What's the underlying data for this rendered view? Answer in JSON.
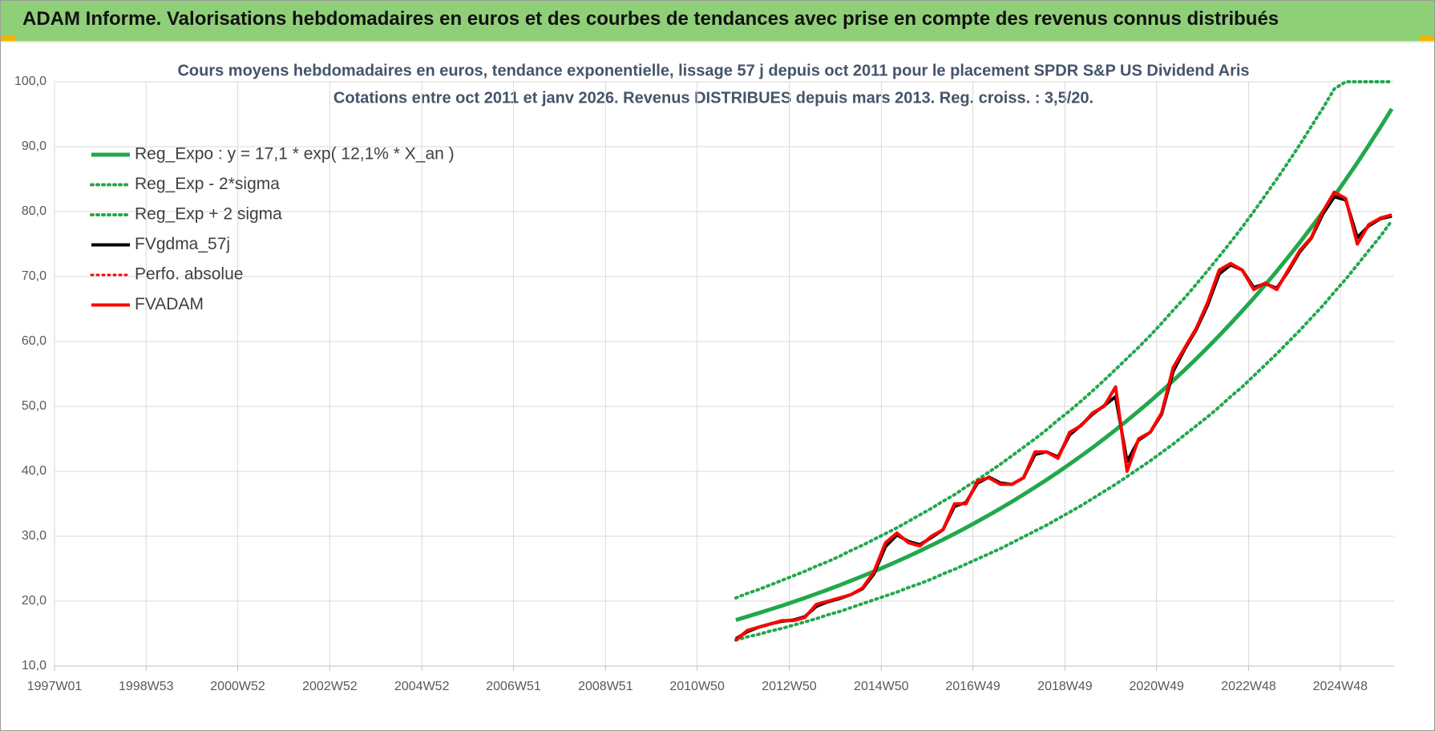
{
  "header": {
    "title": "ADAM Informe. Valorisations hebdomadaires en euros et des courbes de tendances avec prise en compte des revenus connus distribués"
  },
  "chart_data": {
    "type": "line",
    "title": "Cours moyens hebdomadaires en euros, tendance exponentielle, lissage 57 j depuis oct 2011 pour le placement SPDR S&P US Dividend Aris",
    "subtitle": "Cotations entre oct 2011 et janv 2026. Revenus DISTRIBUES depuis mars 2013. Reg. croiss. : 3,5/20.",
    "grid": true,
    "legend": "top-left",
    "xlim": [
      1997.0,
      2026.1
    ],
    "xticks": [
      {
        "value": 1997.0,
        "label": "1997W01"
      },
      {
        "value": 1998.99,
        "label": "1998W53"
      },
      {
        "value": 2000.98,
        "label": "2000W52"
      },
      {
        "value": 2002.98,
        "label": "2002W52"
      },
      {
        "value": 2004.98,
        "label": "2004W52"
      },
      {
        "value": 2006.97,
        "label": "2006W51"
      },
      {
        "value": 2008.97,
        "label": "2008W51"
      },
      {
        "value": 2010.96,
        "label": "2010W50"
      },
      {
        "value": 2012.96,
        "label": "2012W50"
      },
      {
        "value": 2014.96,
        "label": "2014W50"
      },
      {
        "value": 2016.95,
        "label": "2016W49"
      },
      {
        "value": 2018.95,
        "label": "2018W49"
      },
      {
        "value": 2020.94,
        "label": "2020W49"
      },
      {
        "value": 2022.94,
        "label": "2022W48"
      },
      {
        "value": 2024.93,
        "label": "2024W48"
      }
    ],
    "ylim": [
      10,
      100
    ],
    "yticks": [
      {
        "value": 10,
        "label": "10,0"
      },
      {
        "value": 20,
        "label": "20,0"
      },
      {
        "value": 30,
        "label": "30,0"
      },
      {
        "value": 40,
        "label": "40,0"
      },
      {
        "value": 50,
        "label": "50,0"
      },
      {
        "value": 60,
        "label": "60,0"
      },
      {
        "value": 70,
        "label": "70,0"
      },
      {
        "value": 80,
        "label": "80,0"
      },
      {
        "value": 90,
        "label": "90,0"
      },
      {
        "value": 100,
        "label": "100,0"
      }
    ],
    "x": [
      2011.8,
      2012.05,
      2012.3,
      2012.55,
      2012.8,
      2013.05,
      2013.3,
      2013.55,
      2013.8,
      2014.05,
      2014.3,
      2014.55,
      2014.8,
      2015.05,
      2015.3,
      2015.55,
      2015.8,
      2016.05,
      2016.3,
      2016.55,
      2016.8,
      2017.05,
      2017.3,
      2017.55,
      2017.8,
      2018.05,
      2018.3,
      2018.55,
      2018.8,
      2019.05,
      2019.3,
      2019.55,
      2019.8,
      2020.05,
      2020.3,
      2020.55,
      2020.8,
      2021.05,
      2021.3,
      2021.55,
      2021.8,
      2022.05,
      2022.3,
      2022.55,
      2022.8,
      2023.05,
      2023.3,
      2023.55,
      2023.8,
      2024.05,
      2024.3,
      2024.55,
      2024.8,
      2025.05,
      2025.3,
      2025.55,
      2025.8,
      2026.05
    ],
    "series": [
      {
        "name": "Reg_Expo : y = 17,1 * exp( 12,1% *  X_an )",
        "color": "#22a84c",
        "width": 5,
        "dash": false,
        "values": [
          17.1,
          17.63,
          18.17,
          18.73,
          19.3,
          19.89,
          20.5,
          21.13,
          21.78,
          22.45,
          23.14,
          23.85,
          24.58,
          25.33,
          26.11,
          26.91,
          27.74,
          28.59,
          29.47,
          30.37,
          31.31,
          32.27,
          33.26,
          34.28,
          35.33,
          36.42,
          37.54,
          38.69,
          39.88,
          41.1,
          42.36,
          43.66,
          45.0,
          46.38,
          47.81,
          49.28,
          50.79,
          52.35,
          53.96,
          55.61,
          57.32,
          59.08,
          60.89,
          62.76,
          64.69,
          66.67,
          68.72,
          70.83,
          73.0,
          75.24,
          77.55,
          79.93,
          82.39,
          84.92,
          87.52,
          90.21,
          92.98,
          95.83
        ]
      },
      {
        "name": "Reg_Exp - 2*sigma",
        "color": "#22a84c",
        "width": 4,
        "dash": true,
        "values": [
          14.0,
          14.5,
          14.9,
          15.4,
          15.8,
          16.3,
          16.8,
          17.3,
          17.9,
          18.4,
          19.0,
          19.6,
          20.2,
          20.8,
          21.4,
          22.1,
          22.7,
          23.4,
          24.2,
          24.9,
          25.7,
          26.5,
          27.3,
          28.1,
          29.0,
          29.9,
          30.8,
          31.7,
          32.7,
          33.7,
          34.7,
          35.8,
          36.9,
          38.0,
          39.2,
          40.4,
          41.6,
          42.9,
          44.2,
          45.6,
          47.0,
          48.4,
          49.9,
          51.5,
          53.0,
          54.7,
          56.4,
          58.1,
          59.9,
          61.7,
          63.6,
          65.5,
          67.6,
          69.6,
          71.8,
          74.0,
          76.2,
          78.6
        ]
      },
      {
        "name": "Reg_Exp + 2 sigma",
        "color": "#22a84c",
        "width": 4,
        "dash": true,
        "values": [
          20.5,
          21.2,
          21.8,
          22.5,
          23.2,
          23.9,
          24.6,
          25.4,
          26.1,
          26.9,
          27.8,
          28.6,
          29.5,
          30.4,
          31.3,
          32.3,
          33.3,
          34.3,
          35.4,
          36.4,
          37.6,
          38.7,
          39.9,
          41.1,
          42.4,
          43.7,
          45.0,
          46.4,
          47.9,
          49.3,
          50.8,
          52.4,
          54.0,
          55.7,
          57.4,
          59.1,
          60.9,
          62.8,
          64.8,
          66.7,
          68.8,
          70.9,
          73.1,
          75.3,
          77.6,
          80.0,
          82.5,
          85.0,
          87.6,
          90.3,
          93.1,
          95.9,
          98.9,
          100,
          100,
          100,
          100,
          100
        ]
      },
      {
        "name": "FVgdma_57j",
        "color": "#000000",
        "width": 4,
        "dash": false,
        "values": [
          14.2,
          15.3,
          16.0,
          16.5,
          16.9,
          17.1,
          17.6,
          19.2,
          19.9,
          20.4,
          21.0,
          21.9,
          24.2,
          28.4,
          30.2,
          29.2,
          28.7,
          29.8,
          31.0,
          34.6,
          35.2,
          38.2,
          39.1,
          38.2,
          38.0,
          39.0,
          42.6,
          43.0,
          42.2,
          45.6,
          47.1,
          48.8,
          50.1,
          51.5,
          41.5,
          44.8,
          46.0,
          48.8,
          55.4,
          58.8,
          61.8,
          65.6,
          70.4,
          71.8,
          71.0,
          68.3,
          68.9,
          68.2,
          70.8,
          73.8,
          75.9,
          79.6,
          82.3,
          81.8,
          76.0,
          77.8,
          78.9,
          79.3
        ]
      },
      {
        "name": "Perfo. absolue",
        "color": "#ff0000",
        "width": 3,
        "dash": true,
        "values": [
          14,
          15.5,
          16,
          16.5,
          17,
          17,
          17.5,
          19.5,
          20,
          20.5,
          21,
          22,
          24.5,
          29,
          30.5,
          29,
          28.5,
          30,
          31,
          35,
          35,
          38.5,
          39,
          38,
          38,
          39,
          43,
          43,
          42,
          46,
          47,
          49,
          50,
          53,
          40,
          45,
          46,
          49,
          56,
          59,
          62,
          66,
          71,
          72,
          71,
          68,
          69,
          68,
          71,
          74,
          76,
          80,
          83,
          82,
          75,
          78,
          79,
          79.5
        ]
      },
      {
        "name": "FVADAM",
        "color": "#ff0000",
        "width": 4,
        "dash": false,
        "values": [
          14,
          15.5,
          16,
          16.5,
          17,
          17,
          17.5,
          19.5,
          20,
          20.5,
          21,
          22,
          24.5,
          29,
          30.5,
          29,
          28.5,
          30,
          31,
          35,
          35,
          38.5,
          39,
          38,
          38,
          39,
          43,
          43,
          42,
          46,
          47,
          49,
          50,
          53,
          40,
          45,
          46,
          49,
          56,
          59,
          62,
          66,
          71,
          72,
          71,
          68,
          69,
          68,
          71,
          74,
          76,
          80,
          83,
          82,
          75,
          78,
          79,
          79.5
        ]
      }
    ]
  }
}
